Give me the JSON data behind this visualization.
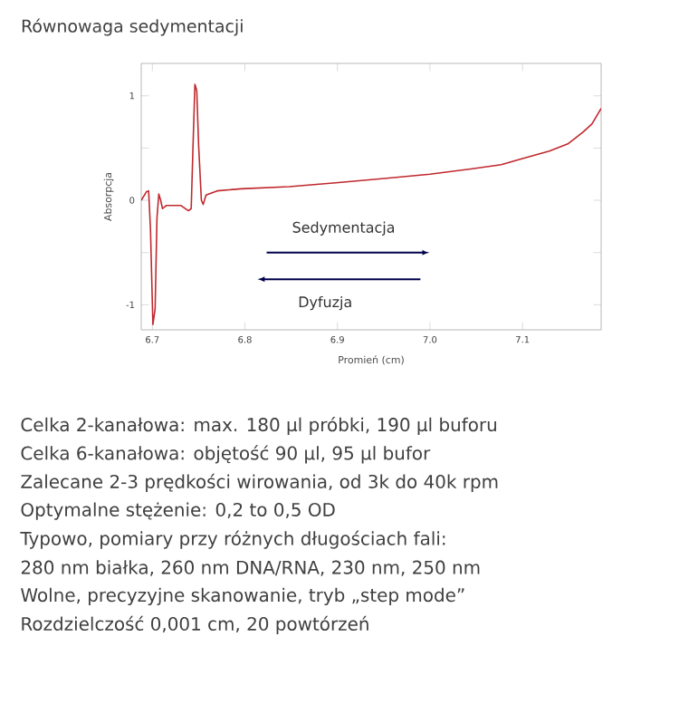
{
  "chart_data": {
    "type": "line",
    "title": "Równowaga sedymentacji",
    "xlabel": "Promień (cm)",
    "ylabel": "Absorpcja",
    "xlim": [
      6.688,
      7.185
    ],
    "ylim": [
      -1.24,
      1.31
    ],
    "xticks": [
      {
        "value": 6.7,
        "label": "6.7"
      },
      {
        "value": 6.8,
        "label": "6.8"
      },
      {
        "value": 6.9,
        "label": "6.9"
      },
      {
        "value": 7.0,
        "label": "7.0"
      },
      {
        "value": 7.1,
        "label": "7.1"
      }
    ],
    "yticks": [
      -1,
      {
        "value": -0.5,
        "label": null
      },
      0,
      {
        "value": 0.5,
        "label": null
      },
      1
    ],
    "marker": "none",
    "line_style": "solid",
    "grid": false,
    "series": [
      {
        "color": "#c0282d",
        "x": [
          6.688,
          6.6935,
          6.696,
          6.698,
          6.7006,
          6.703,
          6.705,
          6.707,
          6.709,
          6.711,
          6.715,
          6.731,
          6.739,
          6.742,
          6.744,
          6.746,
          6.748,
          6.75,
          6.753,
          6.755,
          6.758,
          6.77,
          6.796,
          6.848,
          6.901,
          6.953,
          7.0,
          7.044,
          7.077,
          7.1,
          7.129,
          7.149,
          7.165,
          7.175,
          7.185
        ],
        "values": [
          0.0,
          0.08,
          0.09,
          -0.28,
          -1.19,
          -1.04,
          -0.17,
          0.06,
          0.0,
          -0.08,
          -0.05,
          -0.05,
          -0.1,
          -0.08,
          0.53,
          1.11,
          1.05,
          0.53,
          0.0,
          -0.04,
          0.05,
          0.09,
          0.11,
          0.13,
          0.17,
          0.21,
          0.25,
          0.3,
          0.34,
          0.4,
          0.47,
          0.54,
          0.65,
          0.73,
          0.88
        ]
      }
    ],
    "annotations": [
      "Sedymentacja",
      "Dyfuzja",
      "Celka 2-kanałowa: max. 180 µl próbki, 190 µl buforu",
      "Celka 6-kanałowa: objętość 90 µl, 95 µl bufor",
      "Zalecane 2-3 prędkości wirowania, od 3k do 40k rpm",
      "Optymalne stężenie: 0,2 to 0,5 OD",
      "Typowo, pomiary przy różnych długościach fali:",
      "280 nm białka, 260 nm DNA/RNA, 230 nm, 250 nm",
      "Wolne, precyzyjne skanowanie, tryb „step mode”",
      "Rozdzielczość 0,001 cm, 20 powtórzeń"
    ]
  }
}
